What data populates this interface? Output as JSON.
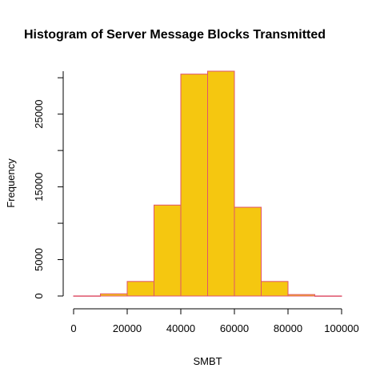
{
  "chart_data": {
    "type": "bar",
    "title": "Histogram of Server Message Blocks Transmitted",
    "xlabel": "SMBT",
    "ylabel": "Frequency",
    "bins": [
      {
        "from": 0,
        "to": 10000,
        "value": 15
      },
      {
        "from": 10000,
        "to": 20000,
        "value": 300
      },
      {
        "from": 20000,
        "to": 30000,
        "value": 2000
      },
      {
        "from": 30000,
        "to": 40000,
        "value": 12500
      },
      {
        "from": 40000,
        "to": 50000,
        "value": 30500
      },
      {
        "from": 50000,
        "to": 60000,
        "value": 30900
      },
      {
        "from": 60000,
        "to": 70000,
        "value": 12200
      },
      {
        "from": 70000,
        "to": 80000,
        "value": 2000
      },
      {
        "from": 80000,
        "to": 90000,
        "value": 200
      },
      {
        "from": 90000,
        "to": 100000,
        "value": 10
      }
    ],
    "xlim": [
      0,
      100000
    ],
    "ylim": [
      0,
      30900
    ],
    "xticks": [
      0,
      20000,
      40000,
      60000,
      80000,
      100000
    ],
    "yticks": [
      0,
      5000,
      15000,
      25000
    ],
    "colors": {
      "fill": "#f5c710",
      "border": "#df536b"
    }
  }
}
